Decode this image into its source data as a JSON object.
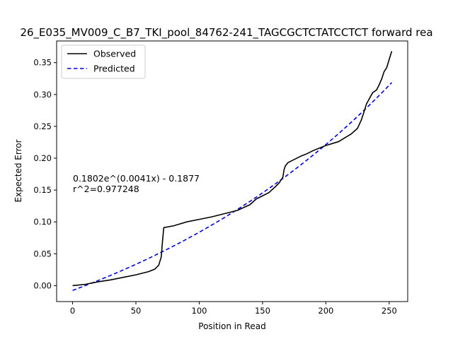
{
  "chart_data": {
    "type": "line",
    "title": "26_E035_MV009_C_B7_TKI_pool_84762-241_TAGCGCTCTATCCTCT forward rea",
    "xlabel": "Position in Read",
    "ylabel": "Expected Error",
    "xlim": [
      -12.6,
      264.6
    ],
    "ylim": [
      -0.025,
      0.384
    ],
    "x_ticks": [
      0,
      50,
      100,
      150,
      200,
      250
    ],
    "x_tick_labels": [
      "0",
      "50",
      "100",
      "150",
      "200",
      "250"
    ],
    "y_ticks": [
      0.0,
      0.05,
      0.1,
      0.15,
      0.2,
      0.25,
      0.3,
      0.35
    ],
    "y_tick_labels": [
      "0.00",
      "0.05",
      "0.10",
      "0.15",
      "0.20",
      "0.25",
      "0.30",
      "0.35"
    ],
    "grid": false,
    "legend": {
      "position": "top-left"
    },
    "annotations": [
      "0.1802e^(0.0041x) - 0.1877",
      "r^2=0.977248"
    ],
    "series": [
      {
        "name": "Observed",
        "color": "#000000",
        "style": "solid",
        "x": [
          0,
          10,
          20,
          30,
          40,
          50,
          60,
          65,
          68,
          70,
          71,
          72,
          80,
          90,
          100,
          110,
          120,
          130,
          140,
          145,
          150,
          155,
          160,
          163,
          166,
          167,
          168,
          170,
          175,
          180,
          185,
          190,
          200,
          210,
          220,
          225,
          228,
          230,
          232,
          235,
          237,
          240,
          242,
          244,
          246,
          248,
          250,
          252
        ],
        "y": [
          0.0,
          0.002,
          0.006,
          0.009,
          0.013,
          0.017,
          0.022,
          0.026,
          0.032,
          0.045,
          0.07,
          0.091,
          0.094,
          0.1,
          0.104,
          0.108,
          0.113,
          0.118,
          0.127,
          0.136,
          0.141,
          0.146,
          0.155,
          0.161,
          0.17,
          0.182,
          0.188,
          0.193,
          0.198,
          0.203,
          0.207,
          0.212,
          0.22,
          0.226,
          0.238,
          0.247,
          0.26,
          0.272,
          0.285,
          0.296,
          0.303,
          0.307,
          0.315,
          0.324,
          0.336,
          0.342,
          0.355,
          0.368
        ]
      },
      {
        "name": "Predicted",
        "color": "#0000dd",
        "style": "dashed",
        "formula": {
          "a": 0.1802,
          "b": 0.0041,
          "c": 0.1877
        },
        "x_range": [
          0,
          252
        ]
      }
    ]
  }
}
